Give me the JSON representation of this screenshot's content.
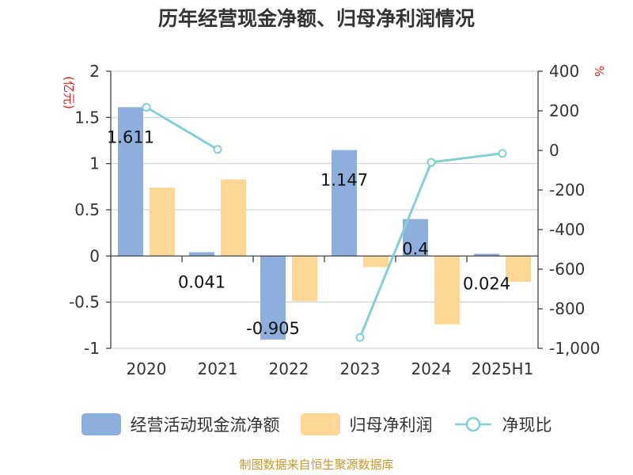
{
  "title": "历年经营现金净额、归母净利润情况",
  "source": "制图数据来自恒生聚源数据库",
  "colors": {
    "bar_cash": "#8eaedb",
    "bar_profit": "#fdd795",
    "line_ratio": "#82d0d6",
    "unit_label": "#e02020",
    "axis": "#333333",
    "grid": "#cccccc"
  },
  "chart_data": {
    "type": "bar",
    "categories": [
      "2020",
      "2021",
      "2022",
      "2023",
      "2024",
      "2025H1"
    ],
    "y_left": {
      "unit": "(亿元)",
      "range": [
        -1,
        2
      ],
      "ticks": [
        "-1",
        "-0.5",
        "0",
        "0.5",
        "1",
        "1.5",
        "2"
      ]
    },
    "y_right": {
      "unit": "%",
      "range": [
        -1000,
        400
      ],
      "ticks": [
        "-1,000",
        "-800",
        "-600",
        "-400",
        "-200",
        "0",
        "200",
        "400"
      ]
    },
    "series": [
      {
        "name": "经营活动现金流净额",
        "kind": "bar",
        "axis": "left",
        "values": [
          1.611,
          0.041,
          -0.905,
          1.147,
          0.4,
          0.024
        ],
        "labels": [
          "1.611",
          "0.041",
          "-0.905",
          "1.147",
          "0.4",
          "0.024"
        ]
      },
      {
        "name": "归母净利润",
        "kind": "bar",
        "axis": "left",
        "values": [
          0.74,
          0.83,
          -0.49,
          -0.12,
          -0.74,
          -0.28
        ]
      },
      {
        "name": "净现比",
        "kind": "line",
        "axis": "right",
        "values": [
          218,
          5,
          null,
          -945,
          -60,
          -15
        ]
      }
    ],
    "grid": true,
    "legend_position": "bottom"
  }
}
